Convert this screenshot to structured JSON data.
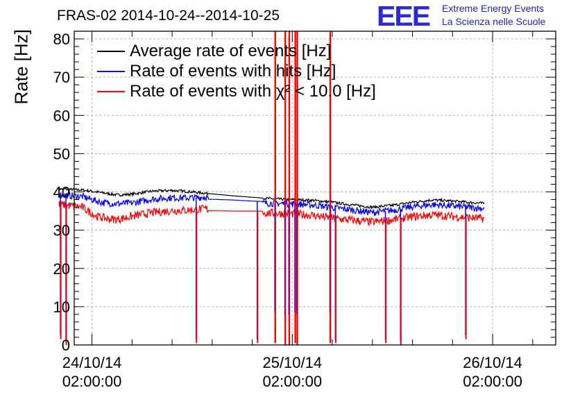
{
  "header": {
    "title": "FRAS-02 2014-10-24--2014-10-25",
    "logo": "EEE",
    "logo_line1": "Extreme Energy Events",
    "logo_line2": "La Scienza nelle Scuole"
  },
  "chart_data": {
    "type": "line",
    "title": "FRAS-02 2014-10-24--2014-10-25",
    "xlabel": "",
    "ylabel": "Rate [Hz]",
    "ylim": [
      0,
      82
    ],
    "yticks": [
      "0",
      "10",
      "20",
      "30",
      "40",
      "50",
      "60",
      "70",
      "80"
    ],
    "ytick_values": [
      0,
      10,
      20,
      30,
      40,
      50,
      60,
      70,
      80
    ],
    "xlim_hours": [
      -1.77,
      46.3
    ],
    "xticks": [
      {
        "hour": 0,
        "date": "24/10/14",
        "time": "02:00:00"
      },
      {
        "hour": 20,
        "date": "25/10/14",
        "time": "02:00:00"
      },
      {
        "hour": 40,
        "date": "26/10/14",
        "time": "02:00:00"
      }
    ],
    "grid": true,
    "legend_position": "top-left",
    "series": [
      {
        "name": "Average rate of events [Hz]",
        "color": "#000000",
        "points": [
          [
            -3.3,
            40.8
          ],
          [
            -1,
            40.5
          ],
          [
            1,
            39.8
          ],
          [
            2.5,
            39.2
          ],
          [
            4,
            39.4
          ],
          [
            6,
            40.2
          ],
          [
            8,
            40.4
          ],
          [
            10,
            40
          ],
          [
            11.5,
            39.6
          ],
          [
            14,
            39.0
          ],
          [
            16,
            38.6
          ],
          [
            18,
            38.2
          ],
          [
            19.8,
            38.0
          ],
          [
            22,
            37.8
          ],
          [
            24,
            37.3
          ],
          [
            26,
            36.6
          ],
          [
            28,
            36.0
          ],
          [
            30,
            36.5
          ],
          [
            32,
            37.3
          ],
          [
            34,
            37.9
          ],
          [
            36,
            37.6
          ],
          [
            38,
            37.2
          ],
          [
            39.2,
            37.0
          ]
        ]
      },
      {
        "name": "Rate of events with hits [Hz]",
        "color": "#0000ff",
        "points": [
          [
            -3.3,
            39.3
          ],
          [
            -1,
            38.8
          ],
          [
            1,
            37.2
          ],
          [
            2.5,
            36.9
          ],
          [
            4,
            37.1
          ],
          [
            6,
            38.1
          ],
          [
            8,
            38.5
          ],
          [
            9.5,
            38.4
          ],
          [
            11.5,
            38.7
          ],
          [
            11.6,
            38.1
          ],
          [
            14,
            37.9
          ],
          [
            16,
            37.6
          ],
          [
            17,
            37.5
          ],
          [
            17.1,
            37.1
          ],
          [
            19.8,
            36.9
          ],
          [
            22,
            36.6
          ],
          [
            24,
            35.9
          ],
          [
            26,
            35.3
          ],
          [
            28,
            34.6
          ],
          [
            30,
            35.2
          ],
          [
            32,
            36.1
          ],
          [
            34,
            36.7
          ],
          [
            36,
            36.3
          ],
          [
            38,
            35.9
          ],
          [
            39.2,
            35.7
          ]
        ]
      },
      {
        "name": "Rate of events with χ² < 10.0 [Hz]",
        "color": "#ff0000",
        "points": [
          [
            -3.3,
            36.8
          ],
          [
            -1,
            36.0
          ],
          [
            0.5,
            33.6
          ],
          [
            1.5,
            33.0
          ],
          [
            2.5,
            32.8
          ],
          [
            4,
            33.6
          ],
          [
            6,
            34.6
          ],
          [
            8,
            35.1
          ],
          [
            9.5,
            35.2
          ],
          [
            11.5,
            35.6
          ],
          [
            11.6,
            35.1
          ],
          [
            14,
            35.0
          ],
          [
            17,
            35.0
          ],
          [
            17.1,
            34.5
          ],
          [
            19.8,
            34.3
          ],
          [
            22,
            33.9
          ],
          [
            24,
            33.1
          ],
          [
            26,
            32.6
          ],
          [
            28,
            32.1
          ],
          [
            30,
            32.7
          ],
          [
            32,
            33.5
          ],
          [
            34,
            34.0
          ],
          [
            36,
            33.6
          ],
          [
            38,
            33.2
          ],
          [
            39.2,
            33.0
          ]
        ]
      }
    ],
    "dips": [
      {
        "hour": -3.15,
        "min": 1.5
      },
      {
        "hour": -2.6,
        "min": 0
      },
      {
        "hour": 10.4,
        "min": 0.5
      },
      {
        "hour": 16.5,
        "min": 0.5
      },
      {
        "hour": 24.3,
        "min": 0.5
      },
      {
        "hour": 29.3,
        "min": 0.5
      },
      {
        "hour": 30.8,
        "min": 0
      },
      {
        "hour": 37.3,
        "min": 1.5
      }
    ],
    "spikes": [
      {
        "hour": 18.3,
        "min": 0.5
      },
      {
        "hour": 19.3,
        "min": 0
      },
      {
        "hour": 19.7,
        "min": 0
      },
      {
        "hour": 20.3,
        "min": 0.5
      },
      {
        "hour": 20.5,
        "min": 0
      },
      {
        "hour": 23.8,
        "min": 0.5
      }
    ]
  }
}
